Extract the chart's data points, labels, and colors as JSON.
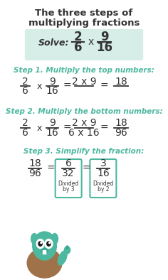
{
  "title_line1": "The three steps of",
  "title_line2": "multiplying fractions",
  "bg_color": "#ffffff",
  "title_color": "#333333",
  "step_color": "#4db8a0",
  "solve_bg": "#d6ede8",
  "step1_label": "Step 1. Multiply the top numbers:",
  "step2_label": "Step 2. Multiply the bottom numbers:",
  "step3_label": "Step 3. Simplify the fraction:",
  "box_color": "#4db8a0",
  "text_color": "#333333",
  "monster_teal": "#4db8a0",
  "monster_brown": "#a0724a"
}
